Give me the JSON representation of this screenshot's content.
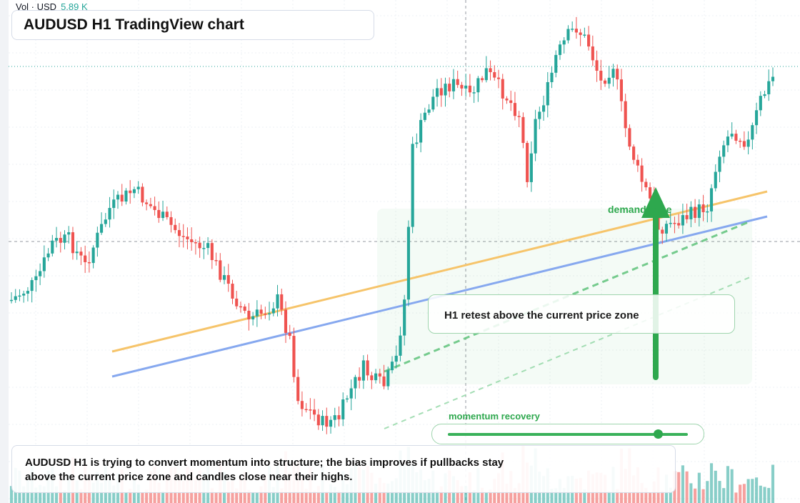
{
  "header": {
    "title": "AUDUSD H1 TradingView chart",
    "volume_label": "Vol · USD",
    "volume_value": "5.89 K"
  },
  "annotations": {
    "zone_label": "demand zone",
    "retest_text": "H1 retest above the current price zone",
    "momentum_label": "momentum recovery",
    "momentum_level": 0.87,
    "note_lines": [
      "AUDUSD H1 is trying to convert momentum into structure; the bias improves if pullbacks stay",
      "above the current price zone and candles close near their highs."
    ]
  },
  "colors": {
    "bull": "#26a69a",
    "bear": "#ef5350",
    "orange_trendline": "#f6c46a",
    "blue_trendline": "#86a8ef",
    "green_accent": "#2ea84e"
  },
  "chart_data": {
    "type": "candlestick",
    "symbol": "AUDUSD",
    "timeframe": "H1",
    "candle_count": 120,
    "trend": "dip then strong recovery",
    "has_volume_pane": true,
    "grid": true
  }
}
